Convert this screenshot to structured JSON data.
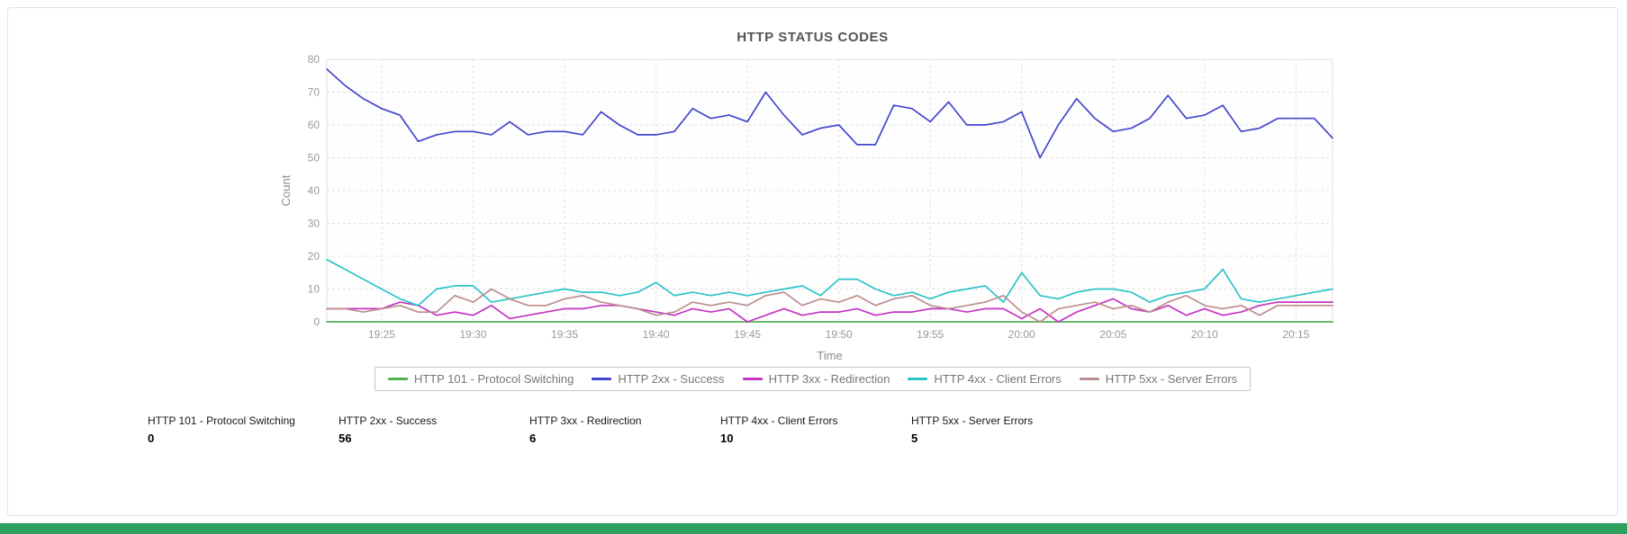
{
  "chart_data": {
    "type": "line",
    "title": "HTTP STATUS CODES",
    "xlabel": "Time",
    "ylabel": "Count",
    "ylim": [
      0,
      80
    ],
    "yticks": [
      0,
      10,
      20,
      30,
      40,
      50,
      60,
      70,
      80
    ],
    "x_count": 56,
    "xticks": [
      {
        "pos": 3,
        "label": "19:25"
      },
      {
        "pos": 8,
        "label": "19:30"
      },
      {
        "pos": 13,
        "label": "19:35"
      },
      {
        "pos": 18,
        "label": "19:40"
      },
      {
        "pos": 23,
        "label": "19:45"
      },
      {
        "pos": 28,
        "label": "19:50"
      },
      {
        "pos": 33,
        "label": "19:55"
      },
      {
        "pos": 38,
        "label": "20:00"
      },
      {
        "pos": 43,
        "label": "20:05"
      },
      {
        "pos": 48,
        "label": "20:10"
      },
      {
        "pos": 53,
        "label": "20:15"
      }
    ],
    "grid": true,
    "legend_position": "bottom",
    "series": [
      {
        "name": "HTTP 101 - Protocol Switching",
        "color": "#52b152",
        "values": [
          0,
          0,
          0,
          0,
          0,
          0,
          0,
          0,
          0,
          0,
          0,
          0,
          0,
          0,
          0,
          0,
          0,
          0,
          0,
          0,
          0,
          0,
          0,
          0,
          0,
          0,
          0,
          0,
          0,
          0,
          0,
          0,
          0,
          0,
          0,
          0,
          0,
          0,
          0,
          0,
          0,
          0,
          0,
          0,
          0,
          0,
          0,
          0,
          0,
          0,
          0,
          0,
          0,
          0,
          0,
          0
        ]
      },
      {
        "name": "HTTP 2xx - Success",
        "color": "#4246cc",
        "values": [
          77,
          72,
          68,
          65,
          63,
          55,
          57,
          58,
          58,
          57,
          61,
          57,
          58,
          58,
          57,
          64,
          60,
          57,
          57,
          58,
          65,
          62,
          63,
          61,
          70,
          63,
          57,
          59,
          60,
          54,
          54,
          66,
          65,
          61,
          67,
          60,
          60,
          61,
          64,
          50,
          60,
          68,
          62,
          58,
          59,
          62,
          69,
          62,
          63,
          66,
          58,
          59,
          62,
          62,
          62,
          56
        ]
      },
      {
        "name": "HTTP 3xx - Redirection",
        "color": "#c435c4",
        "values": [
          4,
          4,
          4,
          4,
          6,
          5,
          2,
          3,
          2,
          5,
          1,
          2,
          3,
          4,
          4,
          5,
          5,
          4,
          3,
          2,
          4,
          3,
          4,
          0,
          2,
          4,
          2,
          3,
          3,
          4,
          2,
          3,
          3,
          4,
          4,
          3,
          4,
          4,
          1,
          4,
          0,
          3,
          5,
          7,
          4,
          3,
          5,
          2,
          4,
          2,
          3,
          5,
          6,
          6,
          6,
          6
        ]
      },
      {
        "name": "HTTP 4xx - Client Errors",
        "color": "#2cc4c7",
        "values": [
          19,
          16,
          13,
          10,
          7,
          5,
          10,
          11,
          11,
          6,
          7,
          8,
          9,
          10,
          9,
          9,
          8,
          9,
          12,
          8,
          9,
          8,
          9,
          8,
          9,
          10,
          11,
          8,
          13,
          13,
          10,
          8,
          9,
          7,
          9,
          10,
          11,
          6,
          15,
          8,
          7,
          9,
          10,
          10,
          9,
          6,
          8,
          9,
          10,
          16,
          7,
          6,
          7,
          8,
          9,
          10
        ]
      },
      {
        "name": "HTTP 5xx - Server Errors",
        "color": "#bc8f8f",
        "values": [
          4,
          4,
          3,
          4,
          5,
          3,
          3,
          8,
          6,
          10,
          7,
          5,
          5,
          7,
          8,
          6,
          5,
          4,
          2,
          3,
          6,
          5,
          6,
          5,
          8,
          9,
          5,
          7,
          6,
          8,
          5,
          7,
          8,
          5,
          4,
          5,
          6,
          8,
          3,
          0,
          4,
          5,
          6,
          4,
          5,
          3,
          6,
          8,
          5,
          4,
          5,
          2,
          5,
          5,
          5,
          5
        ]
      }
    ]
  },
  "summary": {
    "items": [
      {
        "label": "HTTP 101 - Protocol Switching",
        "value": "0"
      },
      {
        "label": "HTTP 2xx - Success",
        "value": "56"
      },
      {
        "label": "HTTP 3xx - Redirection",
        "value": "6"
      },
      {
        "label": "HTTP 4xx - Client Errors",
        "value": "10"
      },
      {
        "label": "HTTP 5xx - Server Errors",
        "value": "5"
      }
    ]
  },
  "colors": {
    "footer_bar": "#2ca25f",
    "card_border": "#e2e2e2",
    "grid_line": "#e0e0e0"
  }
}
